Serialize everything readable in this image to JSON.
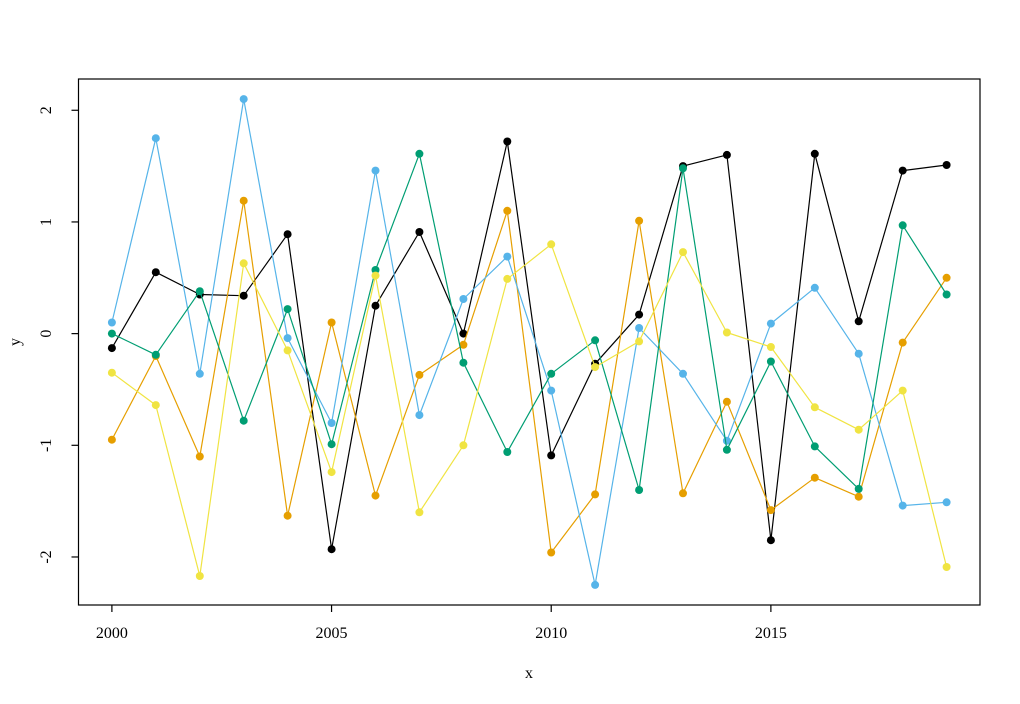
{
  "figure": {
    "background": "#ffffff",
    "plot_type_hint": "R base matplot, no title, no legend, box frame"
  },
  "chart_data": {
    "type": "line",
    "title": "",
    "xlabel": "x",
    "ylabel": "y",
    "x": [
      2000,
      2001,
      2002,
      2003,
      2004,
      2005,
      2006,
      2007,
      2008,
      2009,
      2010,
      2011,
      2012,
      2013,
      2014,
      2015,
      2016,
      2017,
      2018,
      2019
    ],
    "x_ticks": [
      2000,
      2005,
      2010,
      2015
    ],
    "y_ticks": [
      2,
      1,
      0,
      -1,
      -2
    ],
    "xlim": [
      1999.24,
      2019.76
    ],
    "ylim": [
      -2.43,
      2.28
    ],
    "grid": false,
    "legend_position": "none",
    "marker": "filled-circle",
    "axis_color": "#000000",
    "series": [
      {
        "name": "series-black",
        "color": "#000000",
        "values": [
          -0.13,
          0.55,
          0.35,
          0.34,
          0.89,
          -1.93,
          0.25,
          0.91,
          0.0,
          1.72,
          -1.09,
          -0.27,
          0.17,
          1.5,
          1.6,
          -1.85,
          1.61,
          0.11,
          1.46,
          1.51
        ]
      },
      {
        "name": "series-orange",
        "color": "#E69F00",
        "values": [
          -0.95,
          -0.2,
          -1.1,
          1.19,
          -1.63,
          0.1,
          -1.45,
          -0.37,
          -0.1,
          1.1,
          -1.96,
          -1.44,
          1.01,
          -1.43,
          -0.61,
          -1.58,
          -1.29,
          -1.46,
          -0.08,
          0.5
        ]
      },
      {
        "name": "series-skyblue",
        "color": "#56B4E9",
        "values": [
          0.1,
          1.75,
          -0.36,
          2.1,
          -0.04,
          -0.8,
          1.46,
          -0.73,
          0.31,
          0.69,
          -0.51,
          -2.25,
          0.05,
          -0.36,
          -0.96,
          0.09,
          0.41,
          -0.18,
          -1.54,
          -1.51
        ]
      },
      {
        "name": "series-green",
        "color": "#009E73",
        "values": [
          0.0,
          -0.19,
          0.38,
          -0.78,
          0.22,
          -0.99,
          0.57,
          1.61,
          -0.26,
          -1.06,
          -0.36,
          -0.06,
          -1.4,
          1.48,
          -1.04,
          -0.25,
          -1.01,
          -1.39,
          0.97,
          0.35
        ]
      },
      {
        "name": "series-yellow",
        "color": "#F0E442",
        "values": [
          -0.35,
          -0.64,
          -2.17,
          0.63,
          -0.15,
          -1.24,
          0.52,
          -1.6,
          -1.0,
          0.49,
          0.8,
          -0.3,
          -0.07,
          0.73,
          0.01,
          -0.12,
          -0.66,
          -0.86,
          -0.51,
          -2.09
        ]
      }
    ]
  }
}
